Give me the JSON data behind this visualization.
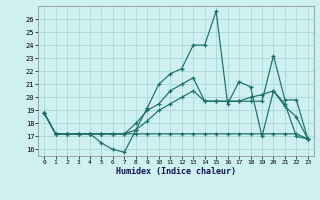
{
  "background_color": "#cff0f0",
  "grid_color": "#a8d8d8",
  "line_color": "#1a7068",
  "xlabel": "Humidex (Indice chaleur)",
  "ylim": [
    15.5,
    27.0
  ],
  "xlim": [
    -0.5,
    23.5
  ],
  "yticks": [
    16,
    17,
    18,
    19,
    20,
    21,
    22,
    23,
    24,
    25,
    26
  ],
  "xticks": [
    0,
    1,
    2,
    3,
    4,
    5,
    6,
    7,
    8,
    9,
    10,
    11,
    12,
    13,
    14,
    15,
    16,
    17,
    18,
    19,
    20,
    21,
    22,
    23
  ],
  "series": [
    [
      18.8,
      17.2,
      17.2,
      17.2,
      17.2,
      16.5,
      16.0,
      15.8,
      17.5,
      19.2,
      21.0,
      21.8,
      22.2,
      24.0,
      24.0,
      26.6,
      19.5,
      21.2,
      20.8,
      17.0,
      20.5,
      19.3,
      18.5,
      16.8
    ],
    [
      18.8,
      17.2,
      17.2,
      17.2,
      17.2,
      17.2,
      17.2,
      17.2,
      17.2,
      17.2,
      17.2,
      17.2,
      17.2,
      17.2,
      17.2,
      17.2,
      17.2,
      17.2,
      17.2,
      17.2,
      17.2,
      17.2,
      17.2,
      16.8
    ],
    [
      18.8,
      17.2,
      17.2,
      17.2,
      17.2,
      17.2,
      17.2,
      17.2,
      18.0,
      19.0,
      19.5,
      20.5,
      21.0,
      21.5,
      19.7,
      19.7,
      19.7,
      19.7,
      20.0,
      20.2,
      20.5,
      19.5,
      17.0,
      16.8
    ],
    [
      18.8,
      17.2,
      17.2,
      17.2,
      17.2,
      17.2,
      17.2,
      17.2,
      17.5,
      18.2,
      19.0,
      19.5,
      20.0,
      20.5,
      19.7,
      19.7,
      19.7,
      19.7,
      19.7,
      19.7,
      23.2,
      19.8,
      19.8,
      16.8
    ]
  ]
}
